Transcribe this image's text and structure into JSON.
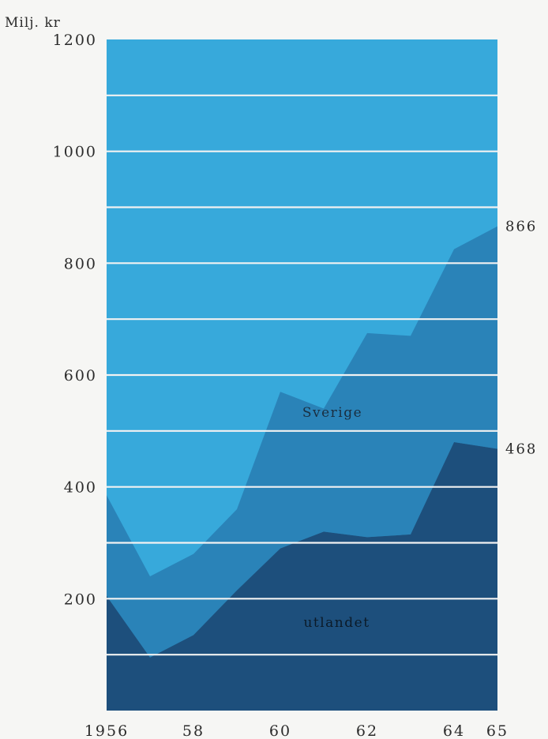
{
  "chart_data": {
    "type": "area",
    "stacked": true,
    "ylabel": "Milj. kr",
    "ylim": [
      0,
      1200
    ],
    "yticks": [
      200,
      400,
      600,
      800,
      1000,
      1200
    ],
    "gridlines": [
      100,
      200,
      300,
      400,
      500,
      600,
      700,
      800,
      900,
      1000,
      1100
    ],
    "xlim": [
      1956,
      1965
    ],
    "xticks": [
      {
        "x": 1956,
        "label": "1956"
      },
      {
        "x": 1958,
        "label": "58"
      },
      {
        "x": 1960,
        "label": "60"
      },
      {
        "x": 1962,
        "label": "62"
      },
      {
        "x": 1964,
        "label": "64"
      },
      {
        "x": 1965,
        "label": "65"
      }
    ],
    "x": [
      1956,
      1957,
      1958,
      1959,
      1960,
      1961,
      1962,
      1963,
      1964,
      1965
    ],
    "series": [
      {
        "name": "utlandet",
        "color": "#1d4f7c",
        "values": [
          205,
          95,
          135,
          215,
          290,
          320,
          310,
          315,
          480,
          468
        ]
      },
      {
        "name": "Sverige",
        "color": "#2a83b8",
        "values": [
          180,
          145,
          145,
          145,
          280,
          220,
          365,
          355,
          345,
          398
        ]
      },
      {
        "name": "",
        "color": "#3ab0df",
        "values": [
          0,
          0,
          0,
          0,
          0,
          0,
          0,
          0,
          0,
          0
        ]
      }
    ],
    "top_total_color": "#3ab0df",
    "background_color": "#37a9db",
    "grid_color": "#f2f2f2",
    "end_labels": [
      "866",
      "468"
    ]
  }
}
